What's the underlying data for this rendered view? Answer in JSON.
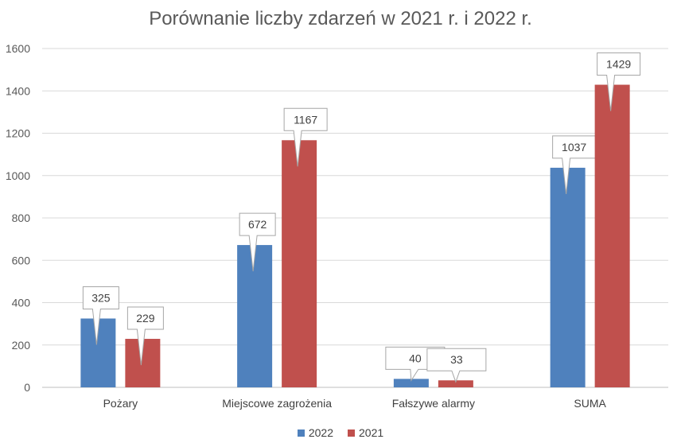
{
  "chart_data": {
    "type": "bar",
    "title": "Porównanie liczby zdarzeń w 2021 r. i 2022 r.",
    "xlabel": "",
    "ylabel": "",
    "categories": [
      "Pożary",
      "Miejscowe zagrożenia",
      "Fałszywe alarmy",
      "SUMA"
    ],
    "series": [
      {
        "name": "2022",
        "values": [
          325,
          672,
          40,
          1037
        ],
        "color": "#4f81bd"
      },
      {
        "name": "2021",
        "values": [
          229,
          1167,
          33,
          1429
        ],
        "color": "#c0504d"
      }
    ],
    "ylim": [
      0,
      1600
    ],
    "yticks": [
      "0",
      "200",
      "400",
      "600",
      "800",
      "1000",
      "1200",
      "1400",
      "1600"
    ],
    "grid": true,
    "legend_position": "bottom",
    "data_labels": "callouts"
  }
}
